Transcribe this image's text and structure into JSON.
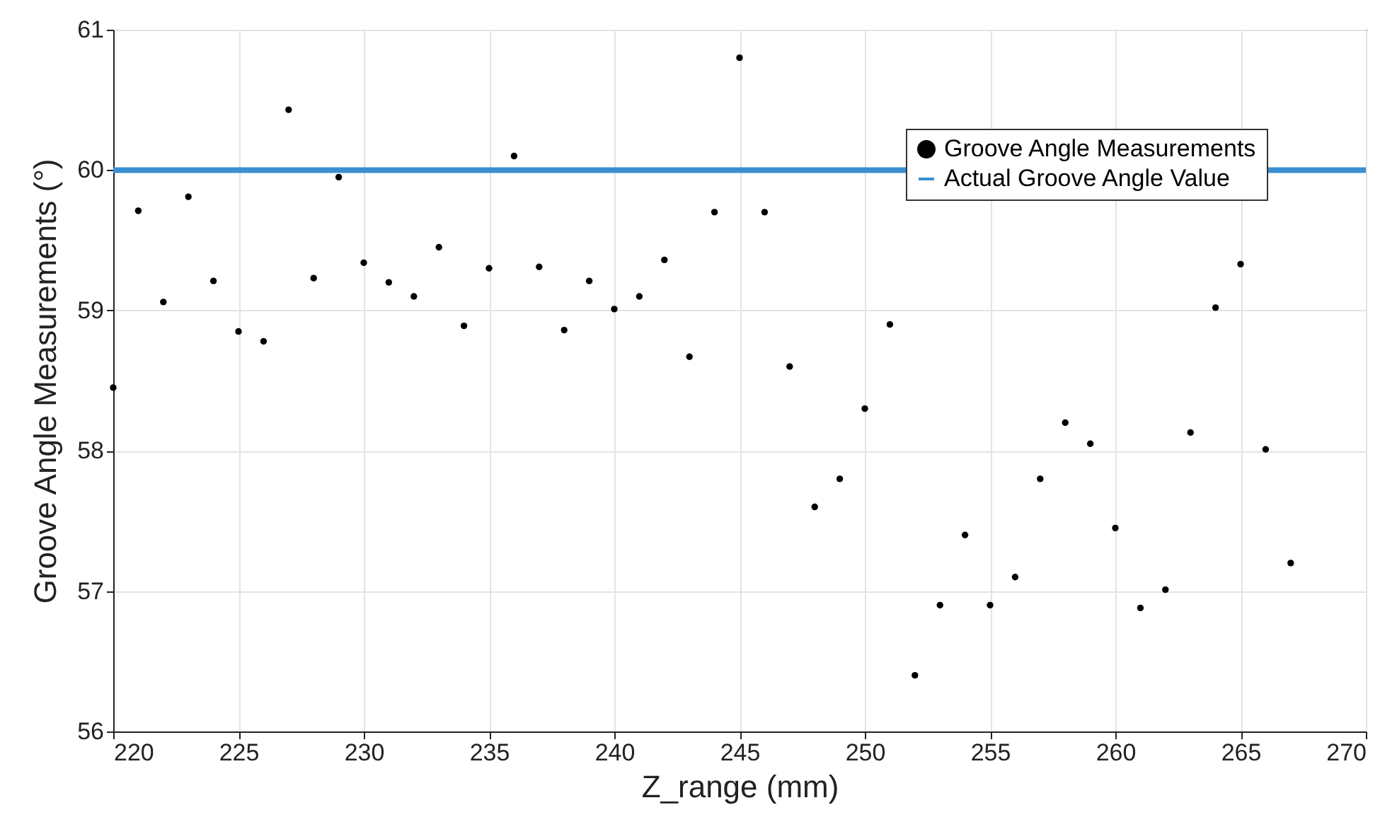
{
  "chart_data": {
    "type": "scatter",
    "xlabel": "Z_range (mm)",
    "ylabel": "Groove Angle Measurements (°)",
    "xlim": [
      220,
      270
    ],
    "xticks": [
      220,
      225,
      230,
      235,
      240,
      245,
      250,
      255,
      260,
      265,
      270
    ],
    "ylim": [
      56,
      61
    ],
    "yticks": [
      56,
      57,
      58,
      59,
      60,
      61
    ],
    "grid": true,
    "legend": "top right",
    "series": [
      {
        "name": "Groove Angle Measurements",
        "color": "#000000",
        "marker": "circle",
        "x": [
          220,
          221,
          222,
          223,
          224,
          225,
          226,
          227,
          228,
          229,
          230,
          231,
          232,
          233,
          234,
          235,
          236,
          237,
          238,
          239,
          240,
          241,
          242,
          243,
          244,
          245,
          246,
          247,
          248,
          249,
          250,
          251,
          252,
          253,
          254,
          255,
          256,
          257,
          258,
          259,
          260,
          261,
          262,
          263,
          264,
          265,
          266,
          267
        ],
        "values": [
          58.45,
          59.71,
          59.06,
          59.81,
          59.21,
          58.85,
          58.78,
          60.43,
          59.23,
          59.95,
          59.34,
          59.2,
          59.1,
          59.45,
          58.89,
          59.3,
          60.1,
          59.31,
          58.86,
          59.21,
          59.01,
          59.1,
          59.36,
          58.67,
          59.7,
          60.8,
          59.7,
          58.6,
          57.6,
          57.8,
          58.3,
          58.9,
          56.4,
          56.9,
          57.4,
          56.9,
          57.1,
          57.8,
          58.2,
          58.05,
          57.45,
          56.88,
          57.01,
          58.13,
          59.02,
          59.33,
          58.01,
          57.2
        ]
      },
      {
        "name": "Actual Groove Angle Value",
        "type": "line",
        "marker": "none",
        "line_style": "solid",
        "color": "#3a8fd0",
        "x": [
          220,
          270
        ],
        "values": [
          60,
          60
        ]
      }
    ]
  }
}
